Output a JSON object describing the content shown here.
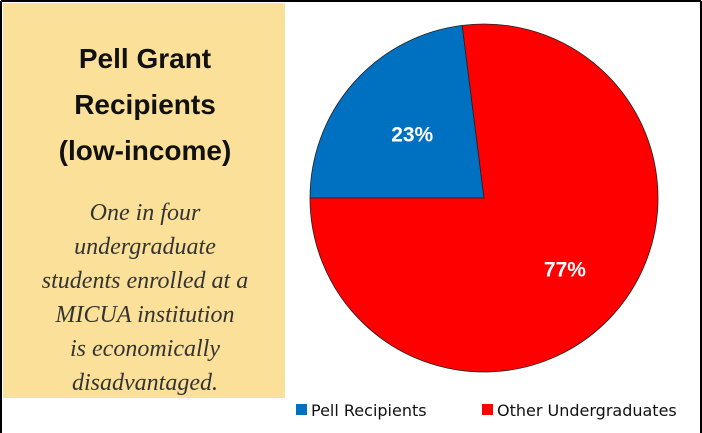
{
  "chart_data": {
    "type": "pie",
    "title": [
      "Pell Grant",
      "Recipients",
      "(low-income)"
    ],
    "annotation": [
      "One in four",
      "undergraduate",
      "students enrolled at a",
      "MICUA institution",
      "is economically",
      "disadvantaged."
    ],
    "categories": [
      "Pell Recipients",
      "Other Undergraduates"
    ],
    "values": [
      23,
      77
    ],
    "value_labels": [
      "23%",
      "77%"
    ],
    "colors": [
      "#0070c0",
      "#ff0000"
    ],
    "legend": "bottom"
  }
}
